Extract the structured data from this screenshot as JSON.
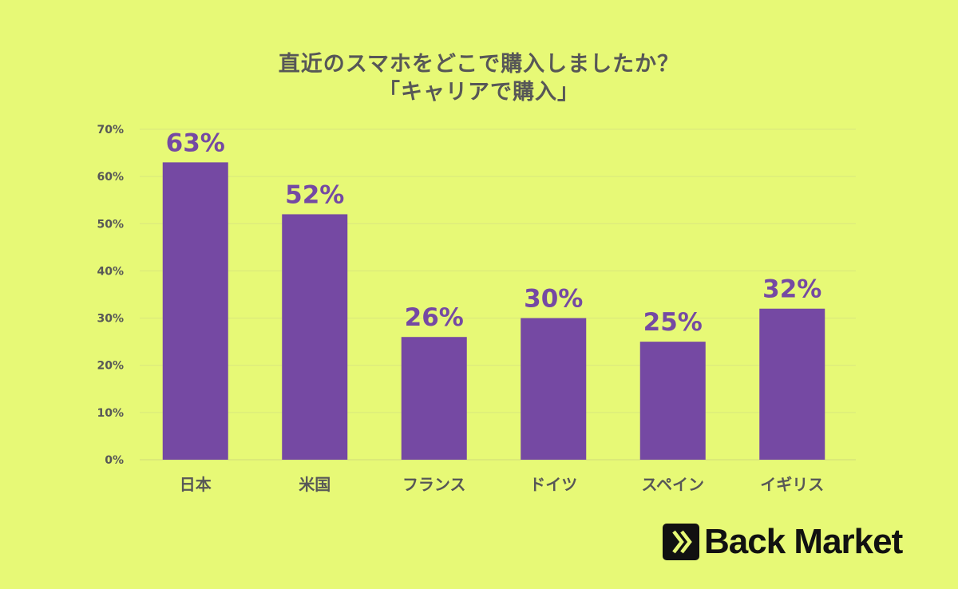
{
  "header": {
    "title_line1": "直近のスマホをどこで購入しましたか？",
    "title_line2": "「キャリアで購入」"
  },
  "logo": {
    "text": "Back Market",
    "icon": "back-market-chevron-icon"
  },
  "colors": {
    "background": "#e7f976",
    "bar": "#7549a3",
    "label": "#7549a3",
    "axis_text": "#575757",
    "grid": "#d9e87e"
  },
  "chart_data": {
    "type": "bar",
    "title": "直近のスマホをどこで購入しましたか？「キャリアで購入」",
    "categories": [
      "日本",
      "米国",
      "フランス",
      "ドイツ",
      "スペイン",
      "イギリス"
    ],
    "values": [
      63,
      52,
      26,
      30,
      25,
      32
    ],
    "data_labels": [
      "63%",
      "52%",
      "26%",
      "30%",
      "25%",
      "32%"
    ],
    "yticks": [
      "0%",
      "10%",
      "20%",
      "30%",
      "40%",
      "50%",
      "60%",
      "70%"
    ],
    "ylim": [
      0,
      70
    ],
    "grid": true,
    "legend": "none"
  }
}
